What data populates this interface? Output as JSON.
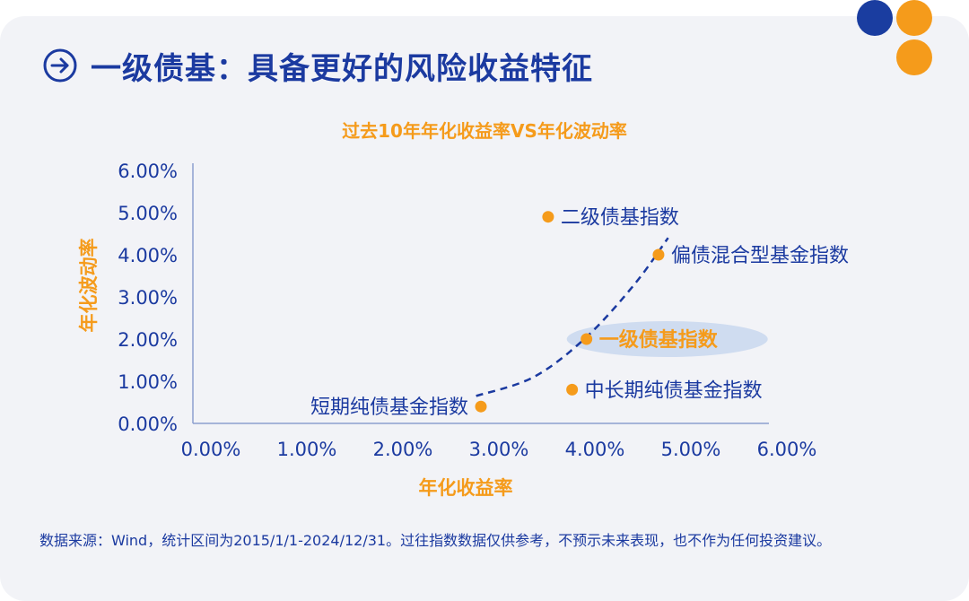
{
  "header": {
    "title": "一级债基：具备更好的风险收益特征",
    "title_icon": "arrow-right-circle-icon"
  },
  "decoration": {
    "colors": {
      "blue": "#1a3da0",
      "orange": "#f59b1b"
    }
  },
  "chart_data": {
    "type": "scatter",
    "title": "过去10年年化收益率VS年化波动率",
    "xlabel": "年化收益率",
    "ylabel": "年化波动率",
    "xlim": [
      0,
      6
    ],
    "ylim": [
      0,
      6
    ],
    "x_ticks": [
      "0.00%",
      "1.00%",
      "2.00%",
      "3.00%",
      "4.00%",
      "5.00%",
      "6.00%"
    ],
    "y_ticks": [
      "0.00%",
      "1.00%",
      "2.00%",
      "3.00%",
      "4.00%",
      "5.00%",
      "6.00%"
    ],
    "unit": "%",
    "grid": false,
    "points": [
      {
        "label": "二级债基指数",
        "x": 3.7,
        "y": 4.9
      },
      {
        "label": "偏债混合型基金指数",
        "x": 4.85,
        "y": 4.0
      },
      {
        "label": "一级债基指数",
        "x": 4.1,
        "y": 2.0,
        "highlight": true
      },
      {
        "label": "中长期纯债基金指数",
        "x": 3.95,
        "y": 0.8
      },
      {
        "label": "短期纯债基金指数",
        "x": 3.0,
        "y": 0.4
      }
    ],
    "trend_curve": [
      {
        "x": 2.95,
        "y": 0.65
      },
      {
        "x": 3.55,
        "y": 1.1
      },
      {
        "x": 4.1,
        "y": 2.05
      },
      {
        "x": 4.6,
        "y": 3.3
      },
      {
        "x": 4.95,
        "y": 4.4
      }
    ],
    "colors": {
      "point": "#f59b1b",
      "text": "#1b3aa0",
      "axis": "#8da0cf",
      "curve": "#1b3aa0",
      "highlight": "#cfdcf0"
    }
  },
  "footer": {
    "source_note": "数据来源：Wind，统计区间为2015/1/1-2024/12/31。过往指数数据仅供参考，不预示未来表现，也不作为任何投资建议。"
  }
}
